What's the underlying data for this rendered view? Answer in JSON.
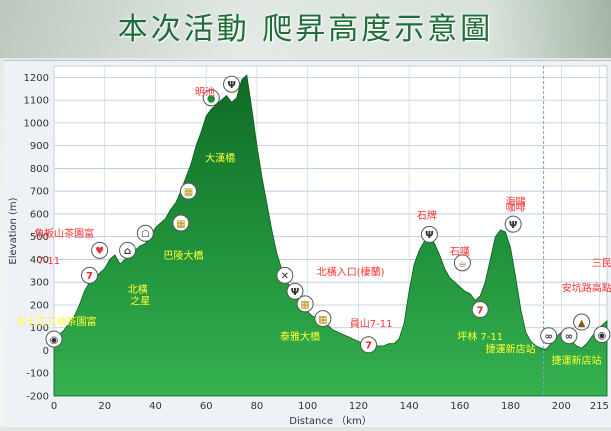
{
  "title": "本次活動 爬昇高度示意圖",
  "chart_data": {
    "type": "area",
    "xlabel": "Distance （km）",
    "ylabel": "Elevation (m)",
    "xlim": [
      0,
      218
    ],
    "ylim": [
      -200,
      1250
    ],
    "x_ticks": [
      "0",
      "20",
      "40",
      "60",
      "80",
      "100",
      "120",
      "140",
      "160",
      "180",
      "200",
      "215"
    ],
    "x_tick_values": [
      0,
      20,
      40,
      60,
      80,
      100,
      120,
      140,
      160,
      180,
      200,
      215
    ],
    "y_ticks": [
      -200,
      -100,
      0,
      100,
      200,
      300,
      400,
      500,
      600,
      700,
      800,
      900,
      1000,
      1100,
      1200
    ],
    "grid": true,
    "fill_color": "#1f8f3a",
    "series": [
      {
        "x": [
          0,
          2,
          4,
          6,
          8,
          10,
          12,
          14,
          16,
          18,
          20,
          22,
          24,
          26,
          28,
          30,
          32,
          34,
          36,
          38,
          40,
          42,
          44,
          46,
          48,
          50,
          52,
          54,
          56,
          58,
          60,
          62,
          64,
          66,
          68,
          70,
          72,
          74,
          76,
          78,
          80,
          82,
          84,
          86,
          88,
          90,
          92,
          94,
          96,
          98,
          100,
          102,
          104,
          106,
          108,
          110,
          112,
          114,
          116,
          118,
          120,
          122,
          124,
          126,
          128,
          130,
          132,
          134,
          136,
          138,
          140,
          142,
          144,
          146,
          148,
          150,
          152,
          154,
          156,
          158,
          160,
          162,
          164,
          166,
          168,
          170,
          172,
          174,
          176,
          178,
          180,
          182,
          184,
          186,
          188,
          190,
          192,
          194,
          196,
          198,
          200,
          202,
          204,
          206,
          208,
          210,
          212,
          214,
          216,
          218
        ],
        "values": [
          30,
          70,
          90,
          120,
          150,
          200,
          260,
          300,
          320,
          340,
          360,
          400,
          420,
          380,
          400,
          420,
          440,
          460,
          470,
          500,
          540,
          560,
          580,
          620,
          650,
          700,
          760,
          820,
          900,
          960,
          1030,
          1060,
          1080,
          1100,
          1120,
          1090,
          1110,
          1190,
          1210,
          1060,
          900,
          760,
          640,
          520,
          420,
          350,
          300,
          260,
          220,
          190,
          170,
          150,
          140,
          120,
          110,
          90,
          80,
          70,
          60,
          50,
          40,
          30,
          20,
          20,
          20,
          20,
          30,
          30,
          50,
          120,
          260,
          380,
          440,
          480,
          500,
          470,
          420,
          360,
          320,
          300,
          280,
          260,
          250,
          220,
          240,
          300,
          400,
          500,
          530,
          520,
          450,
          320,
          180,
          80,
          40,
          20,
          10,
          5,
          30,
          60,
          80,
          60,
          40,
          20,
          10,
          30,
          60,
          90,
          110,
          130
        ]
      }
    ],
    "vline_x": 193,
    "annotations": [
      {
        "x": 1,
        "y": 160,
        "text": "台七乙三峽茶園富",
        "side": "below",
        "color": "#ffff33"
      },
      {
        "x": 4,
        "y": 380,
        "text": "7-11",
        "side": "left",
        "color": "#ff3333"
      },
      {
        "x": 4,
        "y": 490,
        "text": "角板山茶園富",
        "side": "above",
        "color": "#ff3333"
      },
      {
        "x": 20,
        "y": 210,
        "text": "",
        "side": "none",
        "color": "#ffffff"
      },
      {
        "x": 33,
        "y": 300,
        "text": "北橫",
        "side": "below",
        "color": "#ffff33"
      },
      {
        "x": 34,
        "y": 250,
        "text": "之星",
        "side": "below",
        "color": "#ffff33"
      },
      {
        "x": 51,
        "y": 450,
        "text": "巴陵大橋",
        "side": "below",
        "color": "#ffff33"
      },
      {
        "x": 58,
        "y": 830,
        "text": "大漢橋",
        "side": "right",
        "color": "#ffff33"
      },
      {
        "x": 65,
        "y": 1120,
        "text": "明池",
        "side": "left",
        "color": "#ff3333"
      },
      {
        "x": 102,
        "y": 330,
        "text": "北橫入口(棲蘭)",
        "side": "right",
        "color": "#ff3333"
      },
      {
        "x": 97,
        "y": 95,
        "text": "泰雅大橋",
        "side": "below",
        "color": "#ffff33"
      },
      {
        "x": 125,
        "y": 95,
        "text": "員山7-11",
        "side": "above",
        "color": "#ff3333"
      },
      {
        "x": 147,
        "y": 570,
        "text": "石牌",
        "side": "above",
        "color": "#ff3333"
      },
      {
        "x": 160,
        "y": 410,
        "text": "石嘆",
        "side": "above",
        "color": "#ff3333"
      },
      {
        "x": 168,
        "y": 95,
        "text": "坪林 7-11",
        "side": "below",
        "color": "#ffff33"
      },
      {
        "x": 182,
        "y": 630,
        "text": "海鷗",
        "side": "above",
        "color": "#ff3333"
      },
      {
        "x": 182,
        "y": 605,
        "text": "咖啡",
        "side": "above",
        "color": "#ff3333"
      },
      {
        "x": 180,
        "y": 40,
        "text": "捷運新店站",
        "side": "below",
        "color": "#ffff33"
      },
      {
        "x": 206,
        "y": -10,
        "text": "捷運新店站",
        "side": "below",
        "color": "#ffff33"
      },
      {
        "x": 210,
        "y": 250,
        "text": "安坑路高點",
        "side": "above",
        "color": "#ff3333"
      },
      {
        "x": 216,
        "y": 360,
        "text": "三民",
        "side": "above",
        "color": "#ff3333"
      }
    ],
    "icons": [
      {
        "x": 0,
        "y": 50,
        "name": "start-icon"
      },
      {
        "x": 14,
        "y": 330,
        "name": "convenience-store-icon"
      },
      {
        "x": 18,
        "y": 440,
        "name": "heart-icon"
      },
      {
        "x": 29,
        "y": 440,
        "name": "landmark-icon"
      },
      {
        "x": 36,
        "y": 515,
        "name": "shop-icon"
      },
      {
        "x": 50,
        "y": 560,
        "name": "bridge-icon"
      },
      {
        "x": 53,
        "y": 700,
        "name": "bridge-icon"
      },
      {
        "x": 62,
        "y": 1110,
        "name": "viewpoint-icon"
      },
      {
        "x": 70,
        "y": 1170,
        "name": "food-icon"
      },
      {
        "x": 91,
        "y": 330,
        "name": "tools-icon"
      },
      {
        "x": 95,
        "y": 260,
        "name": "food-icon"
      },
      {
        "x": 99,
        "y": 205,
        "name": "bridge-icon"
      },
      {
        "x": 106,
        "y": 140,
        "name": "bridge-icon"
      },
      {
        "x": 124,
        "y": 25,
        "name": "convenience-store-icon"
      },
      {
        "x": 148,
        "y": 510,
        "name": "food-icon"
      },
      {
        "x": 161,
        "y": 385,
        "name": "coffee-icon"
      },
      {
        "x": 168,
        "y": 180,
        "name": "convenience-store-icon"
      },
      {
        "x": 181,
        "y": 555,
        "name": "food-icon"
      },
      {
        "x": 195,
        "y": 65,
        "name": "link-icon"
      },
      {
        "x": 203,
        "y": 65,
        "name": "link-icon"
      },
      {
        "x": 208,
        "y": 125,
        "name": "summit-icon"
      },
      {
        "x": 216,
        "y": 70,
        "name": "finish-icon"
      }
    ]
  }
}
